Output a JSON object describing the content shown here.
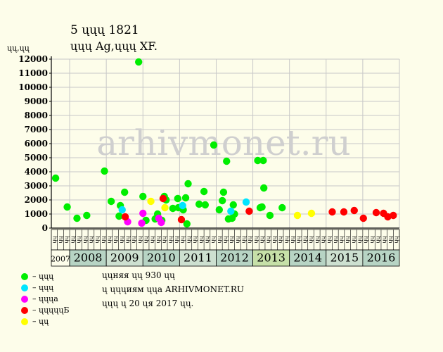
{
  "header": {
    "title": "5 ųųų 1821",
    "subtitle": "ųųų Ag,ųųų XF.",
    "y_unit": "ųų,ųų"
  },
  "watermark": "arhivmonet.ru",
  "colors": {
    "background": "#fdfdea",
    "plot_bg": "#fdfdea",
    "grid": "#c8c8c8",
    "year_band_a": "#cde0d0",
    "year_band_b": "#b7d4c4",
    "year_band_highlight": "#c6e0a8",
    "watermark": "#cfcfcf"
  },
  "chart_data": {
    "type": "scatter",
    "ylim": [
      0,
      12000
    ],
    "yticks": [
      0,
      1000,
      2000,
      3000,
      4000,
      5000,
      6000,
      7000,
      8000,
      9000,
      10000,
      11000,
      12000
    ],
    "xlim": [
      0,
      57
    ],
    "quarter_labels": [
      "ųų",
      "ųų",
      "ųų",
      "ųų",
      "ųų",
      "ųų",
      "ųų",
      "ųų",
      "ųų",
      "ųų",
      "ųų",
      "ųų",
      "ųų",
      "ųų",
      "ųų",
      "ųų",
      "ųų",
      "ųų",
      "ųų",
      "ųų",
      "ųų",
      "ųų",
      "ųų",
      "ųų",
      "ųų",
      "ųų",
      "ųų",
      "ųų",
      "ųų",
      "ųų",
      "ųų",
      "ųų",
      "ųų",
      "ųų",
      "ųų",
      "ųų",
      "ųų",
      "ųų",
      "ųų",
      "ųų",
      "ųų",
      "ųų",
      "ųų",
      "ųų",
      "ųų",
      "ųų",
      "ųų",
      "ųų",
      "ųų",
      "ųų",
      "ųų",
      "ųų",
      "ųų",
      "ųų",
      "ųų",
      "ųų",
      "ųų"
    ],
    "years": [
      {
        "label": "2007",
        "start": 0,
        "end": 3
      },
      {
        "label": "2008",
        "start": 3,
        "end": 9
      },
      {
        "label": "2009",
        "start": 9,
        "end": 15
      },
      {
        "label": "2010",
        "start": 15,
        "end": 21
      },
      {
        "label": "2011",
        "start": 21,
        "end": 27
      },
      {
        "label": "2012",
        "start": 27,
        "end": 33
      },
      {
        "label": "2013",
        "start": 33,
        "end": 39
      },
      {
        "label": "2014",
        "start": 39,
        "end": 45
      },
      {
        "label": "2015",
        "start": 45,
        "end": 51
      },
      {
        "label": "2016",
        "start": 51,
        "end": 57
      }
    ],
    "series": [
      {
        "name": "ųųų",
        "color": "#00ee00",
        "points": [
          [
            0.7,
            3550
          ],
          [
            2.6,
            1500
          ],
          [
            4.2,
            700
          ],
          [
            5.8,
            900
          ],
          [
            8.7,
            4050
          ],
          [
            9.8,
            1900
          ],
          [
            11.1,
            850
          ],
          [
            11.3,
            1600
          ],
          [
            12.0,
            2550
          ],
          [
            14.3,
            11800
          ],
          [
            15.0,
            2250
          ],
          [
            15.5,
            550
          ],
          [
            17.0,
            650
          ],
          [
            17.4,
            1000
          ],
          [
            18.1,
            550
          ],
          [
            18.5,
            2250
          ],
          [
            18.8,
            2000
          ],
          [
            19.9,
            1400
          ],
          [
            20.7,
            2100
          ],
          [
            20.8,
            1450
          ],
          [
            21.6,
            1300
          ],
          [
            22.0,
            2150
          ],
          [
            22.2,
            300
          ],
          [
            22.4,
            3150
          ],
          [
            24.2,
            1700
          ],
          [
            25.0,
            2600
          ],
          [
            25.2,
            1650
          ],
          [
            26.6,
            5900
          ],
          [
            27.5,
            1300
          ],
          [
            28.0,
            1950
          ],
          [
            28.2,
            2550
          ],
          [
            28.7,
            4750
          ],
          [
            29.0,
            650
          ],
          [
            29.6,
            700
          ],
          [
            29.8,
            1650
          ],
          [
            30.0,
            1000
          ],
          [
            33.8,
            4800
          ],
          [
            34.2,
            1450
          ],
          [
            34.5,
            1500
          ],
          [
            34.7,
            4800
          ],
          [
            34.8,
            2850
          ],
          [
            35.8,
            900
          ],
          [
            37.8,
            1450
          ]
        ]
      },
      {
        "name": "ųųų",
        "color": "#00e5ff",
        "points": [
          [
            11.6,
            1300
          ],
          [
            21.5,
            1600
          ],
          [
            29.4,
            1200
          ],
          [
            31.9,
            1850
          ]
        ]
      },
      {
        "name": "ųųųa",
        "color": "#ff00ff",
        "points": [
          [
            12.5,
            450
          ],
          [
            14.8,
            350
          ],
          [
            15.0,
            1050
          ],
          [
            17.6,
            700
          ],
          [
            18.0,
            400
          ]
        ]
      },
      {
        "name": "ųųųųųБ",
        "color": "#ff0000",
        "points": [
          [
            12.1,
            800
          ],
          [
            18.3,
            2100
          ],
          [
            21.3,
            600
          ],
          [
            32.4,
            1200
          ],
          [
            46.0,
            1150
          ],
          [
            47.9,
            1150
          ],
          [
            49.6,
            1250
          ],
          [
            51.1,
            700
          ],
          [
            53.2,
            1100
          ],
          [
            54.4,
            1050
          ],
          [
            55.1,
            800
          ],
          [
            56.0,
            900
          ]
        ]
      },
      {
        "name": "ųų",
        "color": "#ffff00",
        "points": [
          [
            16.3,
            1900
          ],
          [
            18.6,
            1450
          ],
          [
            40.3,
            900
          ],
          [
            42.6,
            1050
          ]
        ]
      }
    ]
  },
  "legend": [
    {
      "label": "– ųųų",
      "color": "#00ee00"
    },
    {
      "label": "– ųųų",
      "color": "#00e5ff"
    },
    {
      "label": "– ųųųa",
      "color": "#ff00ff"
    },
    {
      "label": "– ųųųųųБ",
      "color": "#ff0000"
    },
    {
      "label": "– ųų",
      "color": "#ffff00"
    }
  ],
  "notes": {
    "line1": "ųųняя ųų 930 ųų",
    "line2": "ų ųųųиям ųųа ARHIVMONET.RU",
    "line3": "ųųų ų 20 ųя 2017 ųų."
  }
}
